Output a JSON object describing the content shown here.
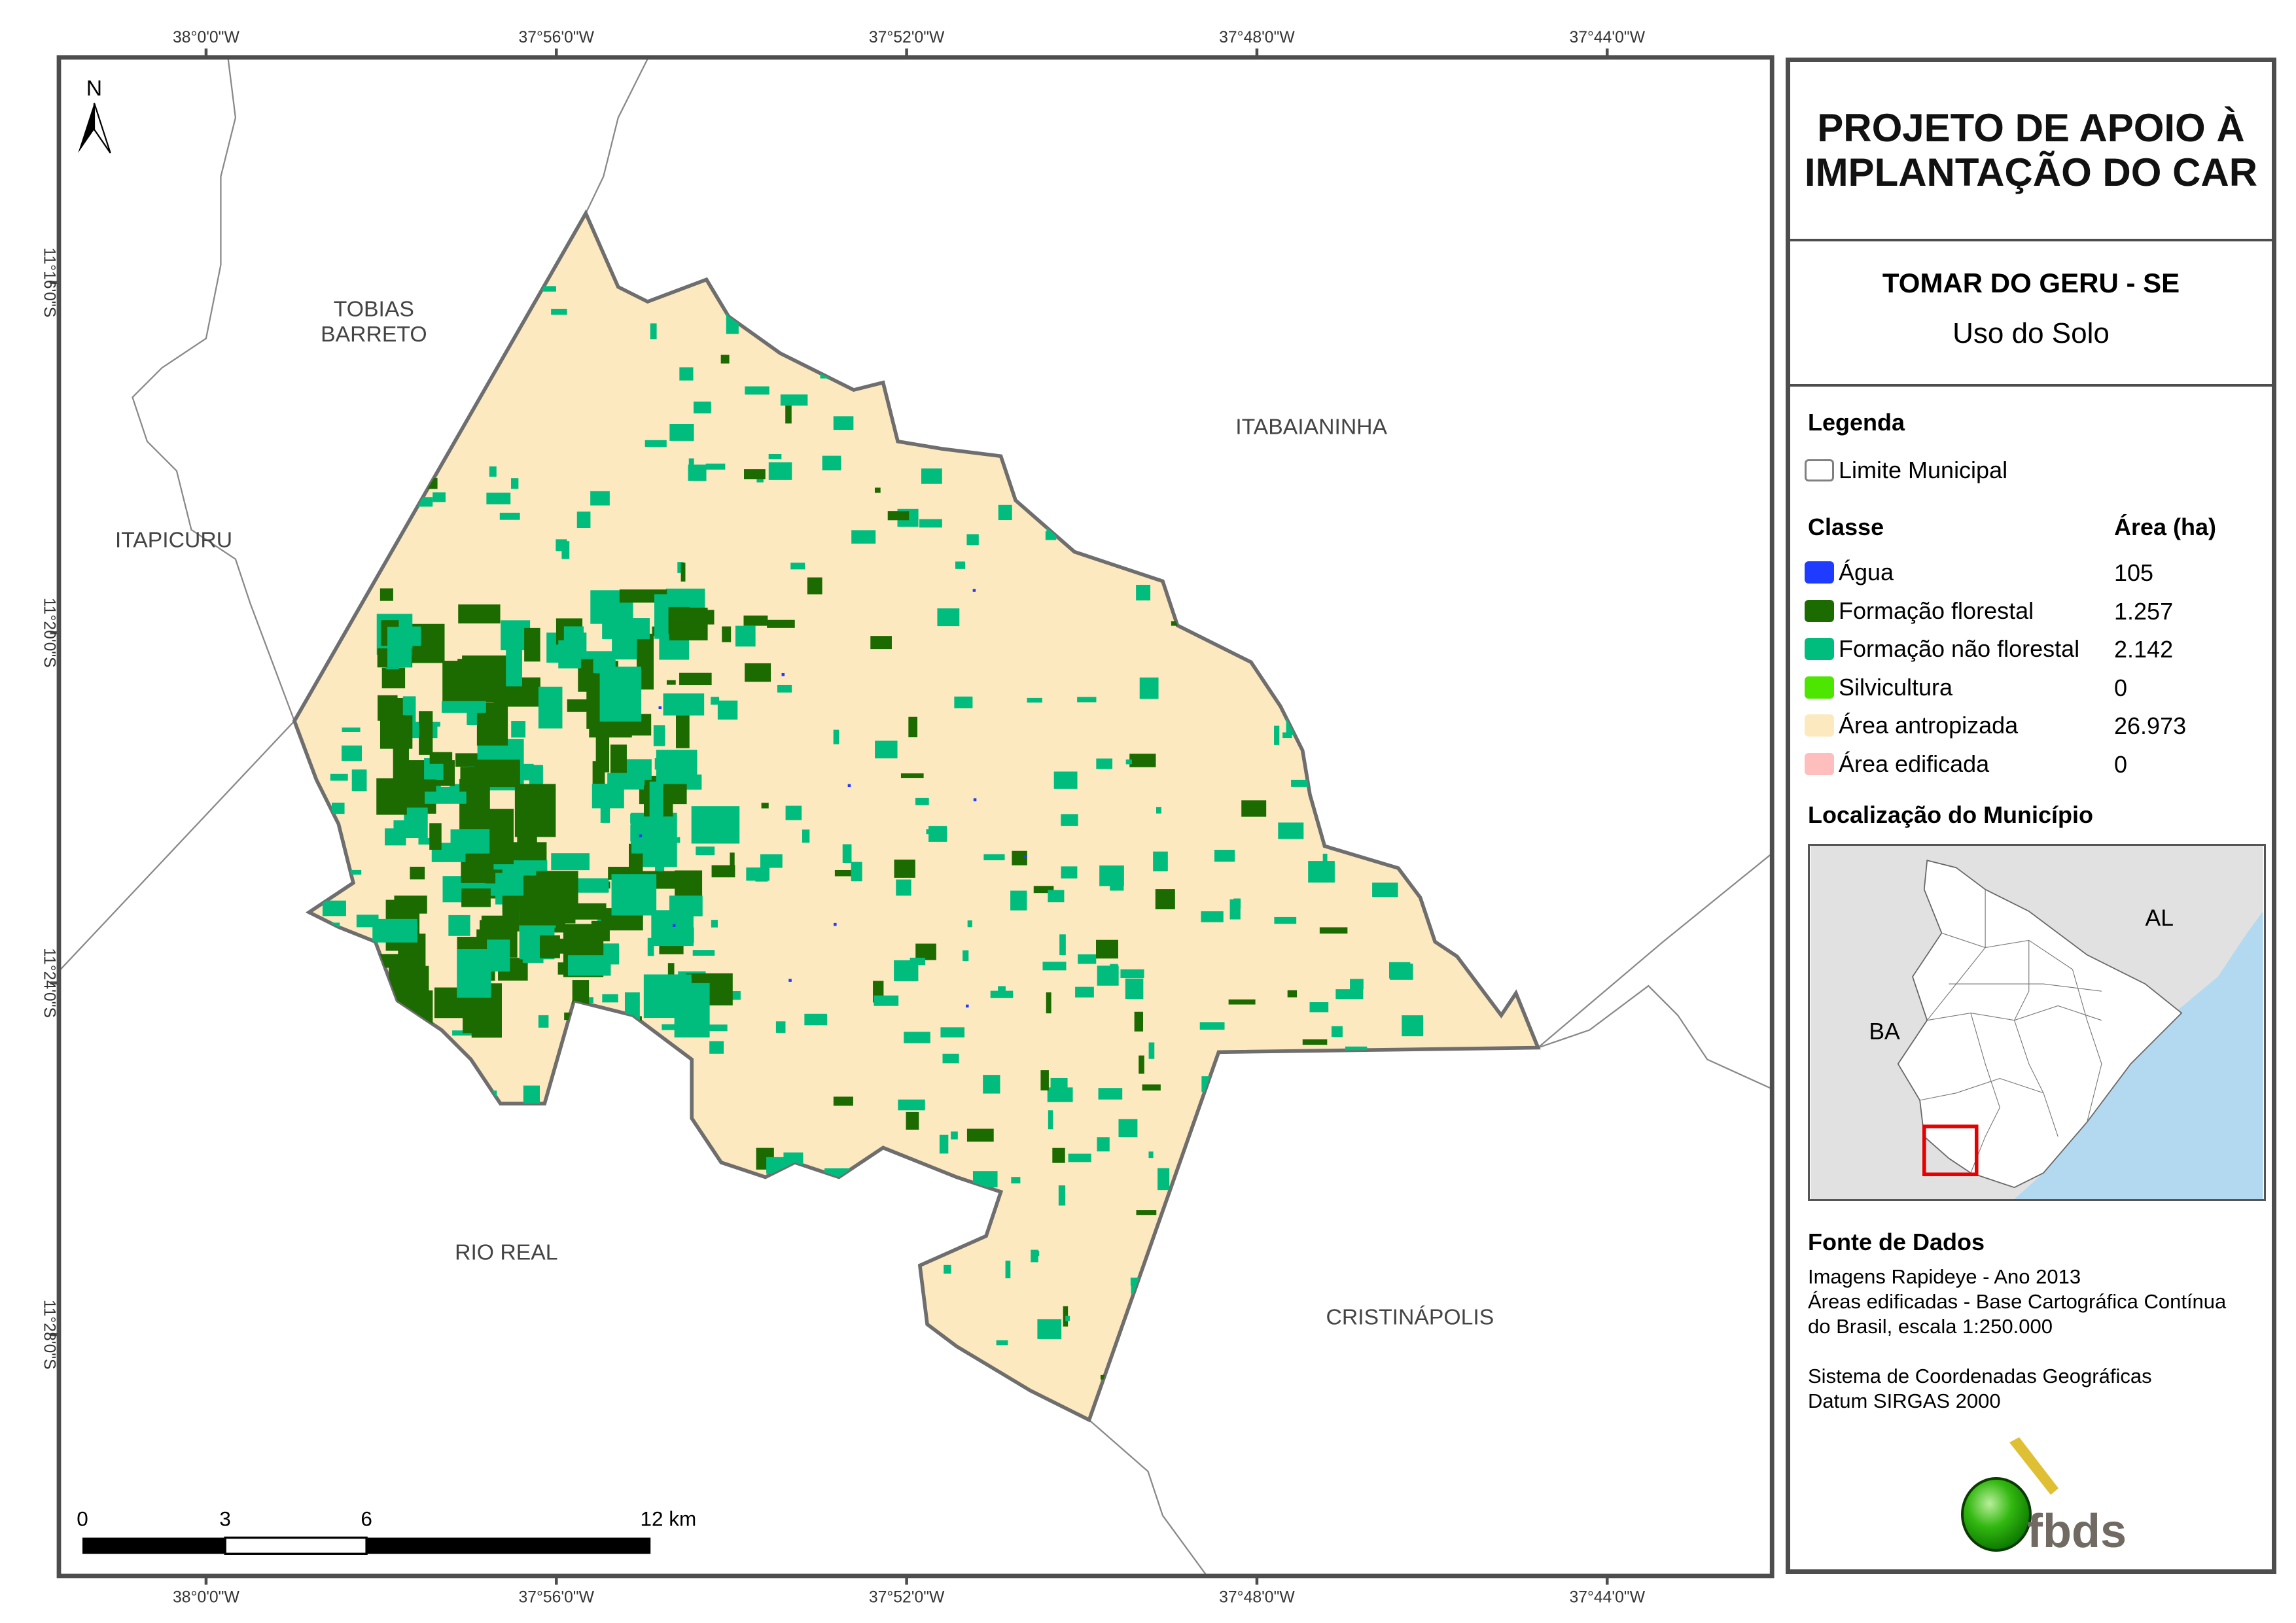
{
  "colors": {
    "frame": "#4d4d4d",
    "agua": "#1f3bff",
    "formacao_florestal": "#1c6b00",
    "formacao_nao_florestal": "#00bd7e",
    "silvicultura": "#4ce600",
    "area_antropizada": "#fde9c0",
    "area_edificada": "#ffbebe",
    "limite": "#808080"
  },
  "map": {
    "north_label": "N",
    "top_ticks": [
      "38°0'0\"W",
      "37°56'0\"W",
      "37°52'0\"W",
      "37°48'0\"W",
      "37°44'0\"W"
    ],
    "bottom_ticks": [
      "38°0'0\"W",
      "37°56'0\"W",
      "37°52'0\"W",
      "37°48'0\"W",
      "37°44'0\"W"
    ],
    "left_ticks": [
      "11°16'0\"S",
      "11°20'0\"S",
      "11°24'0\"S",
      "11°28'0\"S"
    ],
    "neighbors": [
      "TOBIAS",
      "BARRETO",
      "ITAPICURU",
      "ITABAIANINHA",
      "RIO REAL",
      "CRISTINÁPOLIS"
    ],
    "scale_labels": [
      "0",
      "3",
      "6",
      "12 km"
    ]
  },
  "panel": {
    "title_line1": "PROJETO DE APOIO À",
    "title_line2": "IMPLANTAÇÃO DO CAR",
    "municipality": "TOMAR DO GERU - SE",
    "theme": "Uso do Solo",
    "legend_heading": "Legenda",
    "limit_label": "Limite Municipal",
    "class_heading": "Classe",
    "area_heading": "Área (ha)",
    "classes": [
      {
        "label": "Água",
        "area": "105"
      },
      {
        "label": "Formação florestal",
        "area": "1.257"
      },
      {
        "label": "Formação não florestal",
        "area": "2.142"
      },
      {
        "label": "Silvicultura",
        "area": "0"
      },
      {
        "label": "Área antropizada",
        "area": "26.973"
      },
      {
        "label": "Área edificada",
        "area": "0"
      }
    ],
    "location_heading": "Localização do Município",
    "locator_labels": {
      "al": "AL",
      "ba": "BA"
    },
    "source_heading": "Fonte de Dados",
    "source_lines": [
      "Imagens Rapideye - Ano 2013",
      "Áreas edificadas - Base Cartográfica Contínua",
      "do Brasil, escala 1:250.000"
    ],
    "crs_lines": [
      "Sistema de Coordenadas Geográficas",
      "Datum SIRGAS 2000"
    ],
    "logo_text": "fbds"
  }
}
